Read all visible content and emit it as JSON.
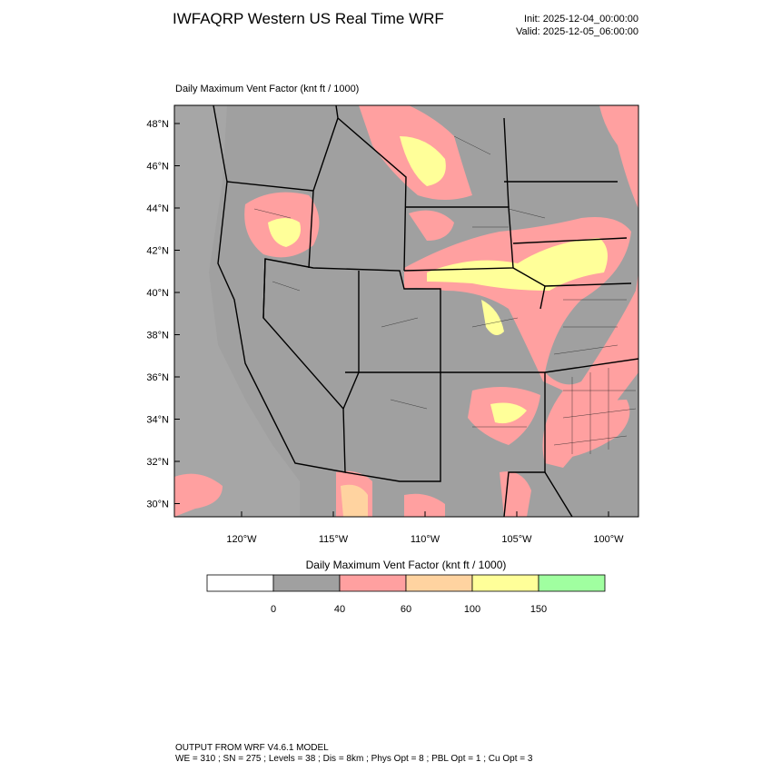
{
  "header": {
    "title": "IWFAQRP Western US Real Time WRF",
    "init": "Init: 2025-12-04_00:00:00",
    "valid": "Valid: 2025-12-05_06:00:00"
  },
  "map": {
    "title": "Daily Maximum Vent Factor   (knt ft / 1000)",
    "lat_labels": [
      "48°N",
      "46°N",
      "44°N",
      "42°N",
      "40°N",
      "38°N",
      "36°N",
      "34°N",
      "32°N",
      "30°N"
    ],
    "lon_labels": [
      "120°W",
      "115°W",
      "110°W",
      "105°W",
      "100°W"
    ]
  },
  "colorbar": {
    "title": "Daily Maximum Vent Factor  (knt ft / 1000)",
    "colors": [
      "#ffffff",
      "#a0a0a0",
      "#ffa0a0",
      "#ffd3a0",
      "#ffff99",
      "#a0ffa0"
    ],
    "ticks": [
      0,
      40,
      60,
      100,
      150
    ]
  },
  "footer": {
    "line1": "OUTPUT FROM WRF V4.6.1 MODEL",
    "line2": "WE = 310 ; SN = 275 ; Levels = 38 ; Dis = 8km ; Phys Opt = 8 ; PBL Opt = 1 ; Cu Opt = 3"
  }
}
